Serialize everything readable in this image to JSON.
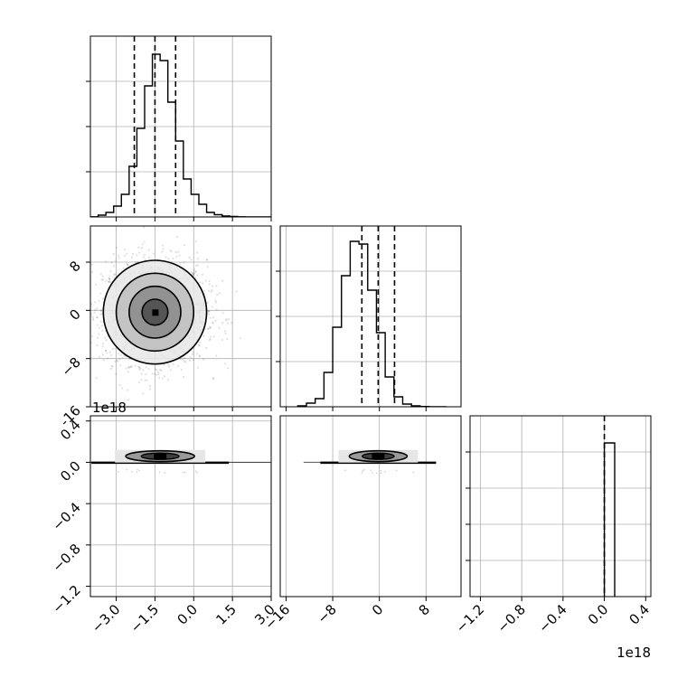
{
  "chart_data": {
    "type": "corner",
    "grid": true,
    "offset_labels": {
      "y_row3": "1e18",
      "x_col3": "1e18"
    },
    "panels": [
      {
        "id": "hist-1",
        "type": "histogram",
        "row": 1,
        "col": 1,
        "xlim": [
          -4.0,
          3.0
        ],
        "ylim": [
          0,
          2000
        ],
        "x_ticks": [
          -3.0,
          -1.5,
          0.0,
          1.5,
          3.0
        ],
        "y_ticks": [
          500,
          1000,
          1500
        ],
        "bin_edges": [
          -4.0,
          -3.7,
          -3.4,
          -3.1,
          -2.8,
          -2.5,
          -2.2,
          -1.9,
          -1.6,
          -1.3,
          -1.0,
          -0.7,
          -0.4,
          -0.1,
          0.2,
          0.5,
          0.8,
          1.1,
          1.4,
          1.7,
          2.0,
          2.3,
          2.6,
          3.0
        ],
        "counts": [
          2,
          20,
          50,
          120,
          250,
          560,
          980,
          1450,
          1800,
          1730,
          1270,
          840,
          420,
          250,
          140,
          50,
          25,
          10,
          5,
          2,
          1,
          0,
          0
        ],
        "quantiles": [
          -2.3,
          -1.5,
          -0.7
        ]
      },
      {
        "id": "scatter-2-1",
        "type": "2d-density",
        "row": 2,
        "col": 1,
        "xlim": [
          -4.0,
          3.0
        ],
        "ylim": [
          -16,
          14
        ],
        "y_ticks": [
          -16,
          -8,
          0,
          8
        ],
        "y_tick_labels": [
          "-16",
          "−8",
          "0",
          "8"
        ],
        "center": [
          -1.5,
          -0.3
        ],
        "spread": [
          1.0,
          4.3
        ],
        "contour_levels": [
          0.118,
          0.393,
          0.675,
          0.865
        ]
      },
      {
        "id": "hist-2",
        "type": "histogram",
        "row": 2,
        "col": 2,
        "xlim": [
          -17,
          14
        ],
        "ylim": [
          0,
          2000
        ],
        "y_ticks": [
          500,
          1000,
          1500
        ],
        "bin_edges": [
          -14,
          -12.5,
          -11,
          -9.5,
          -8,
          -6.5,
          -5,
          -3.5,
          -2,
          -0.5,
          1,
          2.5,
          4,
          5.5,
          7,
          8.5,
          10,
          11.5
        ],
        "counts": [
          10,
          40,
          90,
          380,
          880,
          1450,
          1830,
          1800,
          1290,
          820,
          330,
          110,
          30,
          10,
          3,
          1,
          0
        ],
        "quantiles": [
          -3.0,
          -0.2,
          2.6
        ]
      },
      {
        "id": "scatter-3-1",
        "type": "2d-density",
        "row": 3,
        "col": 1,
        "xlim": [
          -4.0,
          3.0
        ],
        "ylim": [
          -1.3,
          0.45
        ],
        "y_ticks": [
          -1.2,
          -0.8,
          -0.4,
          0.0,
          0.4
        ],
        "y_tick_labels": [
          "−1.2",
          "−0.8",
          "−0.4",
          "0.0",
          "0.4"
        ],
        "x_ticks": [
          -3.0,
          -1.5,
          0.0,
          1.5,
          3.0
        ],
        "x_tick_labels": [
          "−3.0",
          "−1.5",
          "0.0",
          "1.5",
          "3.0"
        ]
      },
      {
        "id": "scatter-3-2",
        "type": "2d-density",
        "row": 3,
        "col": 2,
        "xlim": [
          -17,
          14
        ],
        "ylim": [
          -1.3,
          0.45
        ],
        "x_ticks": [
          -16,
          -8,
          0,
          8
        ],
        "x_tick_labels": [
          "−16",
          "−8",
          "0",
          "8"
        ]
      },
      {
        "id": "hist-3",
        "type": "histogram",
        "row": 3,
        "col": 3,
        "xlim": [
          -1.3,
          0.45
        ],
        "ylim": [
          0,
          2000
        ],
        "y_ticks": [
          400,
          800,
          1200,
          1600
        ],
        "x_ticks": [
          -1.2,
          -0.8,
          -0.4,
          0.0,
          0.4
        ],
        "x_tick_labels": [
          "−1.2",
          "−0.8",
          "−0.4",
          "0.0",
          "0.4"
        ],
        "bin_edges": [
          0.0,
          0.1
        ],
        "counts": [
          1700
        ],
        "quantiles": [
          0.0
        ]
      }
    ]
  }
}
